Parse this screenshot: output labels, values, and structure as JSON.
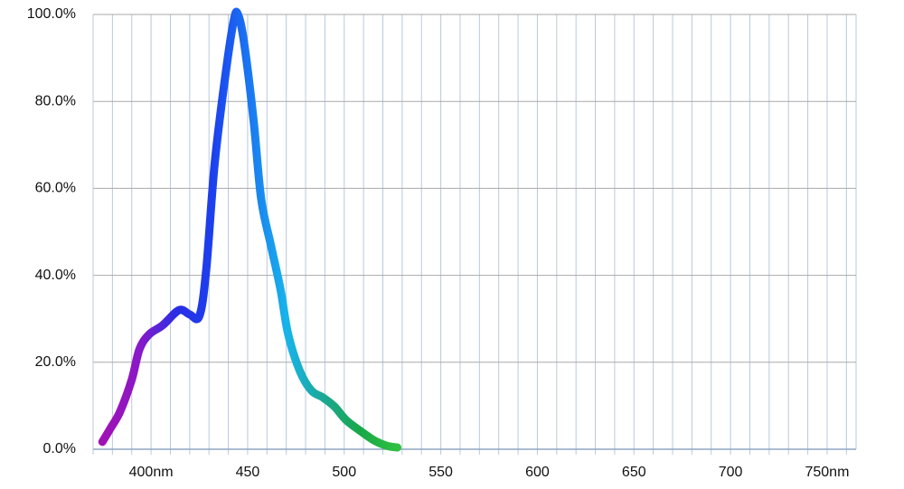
{
  "chart_data": {
    "type": "line",
    "x": [
      374.8,
      379,
      384,
      390,
      394,
      399,
      406,
      414.5,
      420,
      425,
      428.5,
      433,
      439,
      443,
      445,
      448,
      453,
      457,
      462,
      467,
      471,
      477,
      483,
      489,
      495,
      501,
      509,
      516,
      522,
      527.5
    ],
    "values": [
      1.7,
      4.8,
      8.7,
      16,
      23,
      26.4,
      28.5,
      32,
      31,
      30.6,
      41,
      66,
      87.7,
      99,
      100,
      94,
      76,
      57.6,
      47,
      36.8,
      26.4,
      18,
      13.5,
      11.9,
      9.8,
      6.7,
      4,
      1.9,
      0.8,
      0.4
    ],
    "line_gradient": [
      "#a012b4",
      "#8a18c8",
      "#2a2ee6",
      "#1c40ee",
      "#1a78f2",
      "#18b4ea",
      "#1aa894",
      "#18a848",
      "#30c040"
    ],
    "xlim": [
      370,
      765
    ],
    "ylim": [
      0,
      100
    ],
    "xticks": [
      {
        "value": 400,
        "label": "400nm"
      },
      450,
      500,
      550,
      600,
      650,
      700,
      {
        "value": 750,
        "label": "750nm"
      }
    ],
    "xgrid": [
      370,
      380,
      390,
      400,
      410,
      420,
      430,
      440,
      450,
      460,
      470,
      480,
      490,
      500,
      510,
      520,
      530,
      540,
      550,
      560,
      570,
      580,
      590,
      600,
      610,
      620,
      630,
      640,
      650,
      660,
      670,
      680,
      690,
      700,
      710,
      720,
      730,
      740,
      750,
      760
    ],
    "yticks": [
      {
        "value": 0,
        "label": "0.0%"
      },
      {
        "value": 20,
        "label": "20.0%"
      },
      {
        "value": 40,
        "label": "40.0%"
      },
      {
        "value": 60,
        "label": "60.0%"
      },
      {
        "value": 80,
        "label": "80.0%"
      },
      {
        "value": 100,
        "label": "100.0%"
      }
    ],
    "grid": true
  }
}
